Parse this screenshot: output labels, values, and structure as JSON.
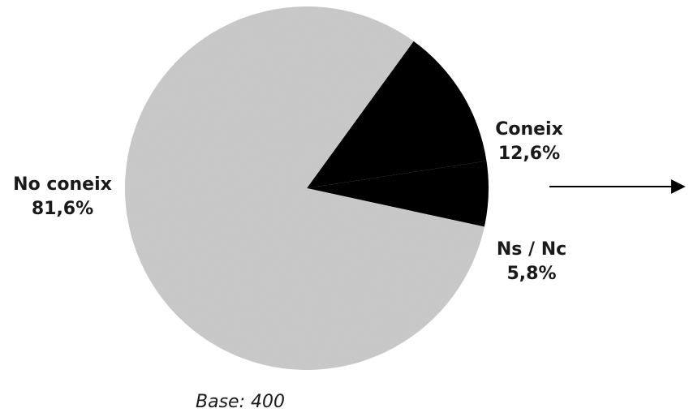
{
  "chart_data": {
    "type": "pie",
    "title": "",
    "slices": [
      {
        "label": "No coneix",
        "value": 81.6,
        "value_label": "81,6%",
        "color": "#c9c9c9"
      },
      {
        "label": "Coneix",
        "value": 12.6,
        "value_label": "12,6%",
        "color": "#000000"
      },
      {
        "label": "Ns / Nc",
        "value": 5.8,
        "value_label": "5,8%",
        "color": "#000000"
      }
    ],
    "base_note": "Base: 400",
    "arrow_direction": "right"
  }
}
